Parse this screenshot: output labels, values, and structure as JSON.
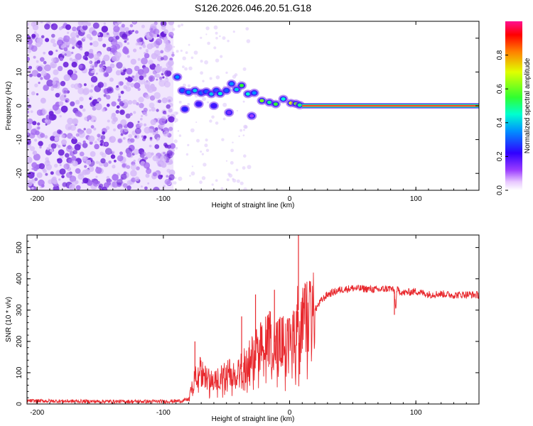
{
  "title": "S126.2026.046.20.51.G18",
  "chart_data": [
    {
      "type": "heatmap",
      "xlabel": "Height of straight line (km)",
      "ylabel": "Frequency (Hz)",
      "xlim": [
        -208,
        150
      ],
      "ylim": [
        -25,
        25
      ],
      "xticks": [
        -200,
        -100,
        0,
        100
      ],
      "yticks": [
        -20,
        -10,
        0,
        10,
        20
      ],
      "noise_region_x": [
        -208,
        -92
      ],
      "signal_line_y": 0,
      "signal_line_x": [
        10,
        150
      ],
      "blobs": [
        {
          "x": -89,
          "y": 8.5,
          "z": 0.35
        },
        {
          "x": -85,
          "y": 4.5,
          "z": 0.3
        },
        {
          "x": -80,
          "y": 4,
          "z": 0.35
        },
        {
          "x": -75,
          "y": 4.5,
          "z": 0.4
        },
        {
          "x": -70,
          "y": 3.8,
          "z": 0.3
        },
        {
          "x": -66,
          "y": 4.2,
          "z": 0.3
        },
        {
          "x": -62,
          "y": 3.5,
          "z": 0.4
        },
        {
          "x": -58,
          "y": 4.5,
          "z": 0.3
        },
        {
          "x": -55,
          "y": 3.6,
          "z": 0.45
        },
        {
          "x": -50,
          "y": 4.5,
          "z": 0.3
        },
        {
          "x": -46,
          "y": 6.5,
          "z": 0.35
        },
        {
          "x": -42,
          "y": 4.8,
          "z": 0.4
        },
        {
          "x": -38,
          "y": 6.0,
          "z": 0.55
        },
        {
          "x": -33,
          "y": 3.5,
          "z": 0.45
        },
        {
          "x": -28,
          "y": 3.8,
          "z": 0.35
        },
        {
          "x": -22,
          "y": 1.5,
          "z": 0.6
        },
        {
          "x": -16,
          "y": 1.0,
          "z": 0.5
        },
        {
          "x": -11,
          "y": 0.5,
          "z": 0.55
        },
        {
          "x": -5,
          "y": 2.0,
          "z": 0.45
        },
        {
          "x": 1,
          "y": 0.8,
          "z": 0.7
        },
        {
          "x": 5,
          "y": 0.6,
          "z": 0.6
        },
        {
          "x": 8,
          "y": 0.2,
          "z": 0.5
        },
        {
          "x": -83,
          "y": -1.0,
          "z": 0.25
        },
        {
          "x": -72,
          "y": 0.5,
          "z": 0.2
        },
        {
          "x": -60,
          "y": 0.0,
          "z": 0.2
        },
        {
          "x": -48,
          "y": -2.0,
          "z": 0.15
        },
        {
          "x": -30,
          "y": -3.0,
          "z": 0.12
        }
      ],
      "colorbar": {
        "label": "Normalized spectral amplitude",
        "range": [
          0,
          1
        ],
        "ticks": [
          "0.0",
          "0.2",
          "0.4",
          "0.6",
          "0.8"
        ]
      }
    },
    {
      "type": "line",
      "xlabel": "Height of straight line (km)",
      "ylabel": "SNR (10 * v/v)",
      "xlim": [
        -208,
        150
      ],
      "ylim": [
        0,
        540
      ],
      "xticks": [
        -200,
        -100,
        0,
        100
      ],
      "yticks": [
        0,
        100,
        200,
        300,
        400,
        500
      ],
      "color": "#e8282d",
      "series": [
        {
          "name": "SNR",
          "x": [
            -208,
            -150,
            -100,
            -85,
            -80,
            -76,
            -72,
            -68,
            -60,
            -50,
            -40,
            -30,
            -25,
            -20,
            -15,
            -10,
            -5,
            0,
            3,
            6,
            7,
            8,
            10,
            15,
            20,
            25,
            30,
            40,
            50,
            60,
            70,
            80,
            83,
            84,
            85,
            90,
            100,
            110,
            120,
            130,
            140,
            150
          ],
          "y": [
            10,
            8,
            8,
            10,
            15,
            70,
            110,
            90,
            70,
            100,
            110,
            150,
            180,
            190,
            210,
            190,
            200,
            190,
            230,
            260,
            300,
            220,
            260,
            280,
            300,
            330,
            350,
            365,
            370,
            368,
            365,
            370,
            360,
            300,
            365,
            355,
            360,
            350,
            352,
            348,
            350,
            348
          ]
        }
      ],
      "spikes": [
        {
          "x": -75,
          "y": 200
        },
        {
          "x": -38,
          "y": 280
        },
        {
          "x": -27,
          "y": 350
        },
        {
          "x": -12,
          "y": 365
        },
        {
          "x": 7,
          "y": 540
        },
        {
          "x": 8,
          "y": 95
        },
        {
          "x": 83,
          "y": 285
        }
      ]
    }
  ]
}
